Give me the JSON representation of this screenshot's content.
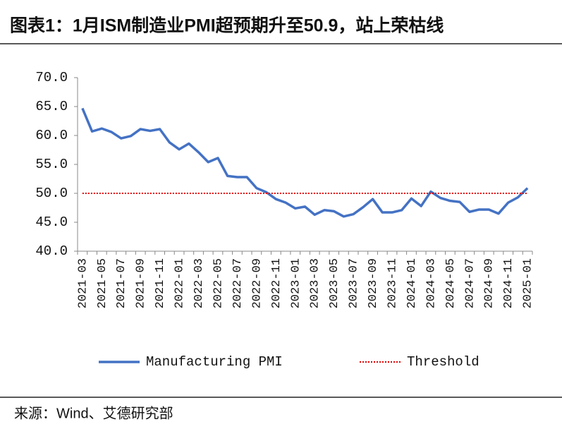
{
  "chart_data": {
    "type": "line",
    "title": "图表1：1月ISM制造业PMI超预期升至50.9，站上荣枯线",
    "source": "来源：Wind、艾德研究部",
    "categories": [
      "2021-03",
      null,
      "2021-05",
      null,
      "2021-07",
      null,
      "2021-09",
      null,
      "2021-11",
      null,
      "2022-01",
      null,
      "2022-03",
      null,
      "2022-05",
      null,
      "2022-07",
      null,
      "2022-09",
      null,
      "2022-11",
      null,
      "2023-01",
      null,
      "2023-03",
      null,
      "2023-05",
      null,
      "2023-07",
      null,
      "2023-09",
      null,
      "2023-11",
      null,
      "2024-01",
      null,
      "2024-03",
      null,
      "2024-05",
      null,
      "2024-07",
      null,
      "2024-09",
      null,
      "2024-11",
      null,
      "2025-01"
    ],
    "series": [
      {
        "name": "Manufacturing PMI",
        "color": "#4472c4",
        "style": "solid",
        "values": [
          64.7,
          60.7,
          61.2,
          60.6,
          59.5,
          59.9,
          61.1,
          60.8,
          61.1,
          58.8,
          57.6,
          58.6,
          57.1,
          55.4,
          56.1,
          53.0,
          52.8,
          52.8,
          50.9,
          50.2,
          49.0,
          48.4,
          47.4,
          47.7,
          46.3,
          47.1,
          46.9,
          46.0,
          46.4,
          47.6,
          49.0,
          46.7,
          46.7,
          47.1,
          49.1,
          47.8,
          50.3,
          49.2,
          48.7,
          48.5,
          46.8,
          47.2,
          47.2,
          46.5,
          48.4,
          49.3,
          50.9
        ]
      },
      {
        "name": "Threshold",
        "color": "#e00000",
        "style": "dotted",
        "values": [
          50,
          50,
          50,
          50,
          50,
          50,
          50,
          50,
          50,
          50,
          50,
          50,
          50,
          50,
          50,
          50,
          50,
          50,
          50,
          50,
          50,
          50,
          50,
          50,
          50,
          50,
          50,
          50,
          50,
          50,
          50,
          50,
          50,
          50,
          50,
          50,
          50,
          50,
          50,
          50,
          50,
          50,
          50,
          50,
          50,
          50,
          50
        ]
      }
    ],
    "ylim": [
      40,
      70
    ],
    "yticks": [
      {
        "value": 40,
        "label": "40.0"
      },
      {
        "value": 45,
        "label": "45.0"
      },
      {
        "value": 50,
        "label": "50.0"
      },
      {
        "value": 55,
        "label": "55.0"
      },
      {
        "value": 60,
        "label": "60.0"
      },
      {
        "value": 65,
        "label": "65.0"
      },
      {
        "value": 70,
        "label": "70.0"
      }
    ],
    "grid": false,
    "legend": "bottom"
  }
}
